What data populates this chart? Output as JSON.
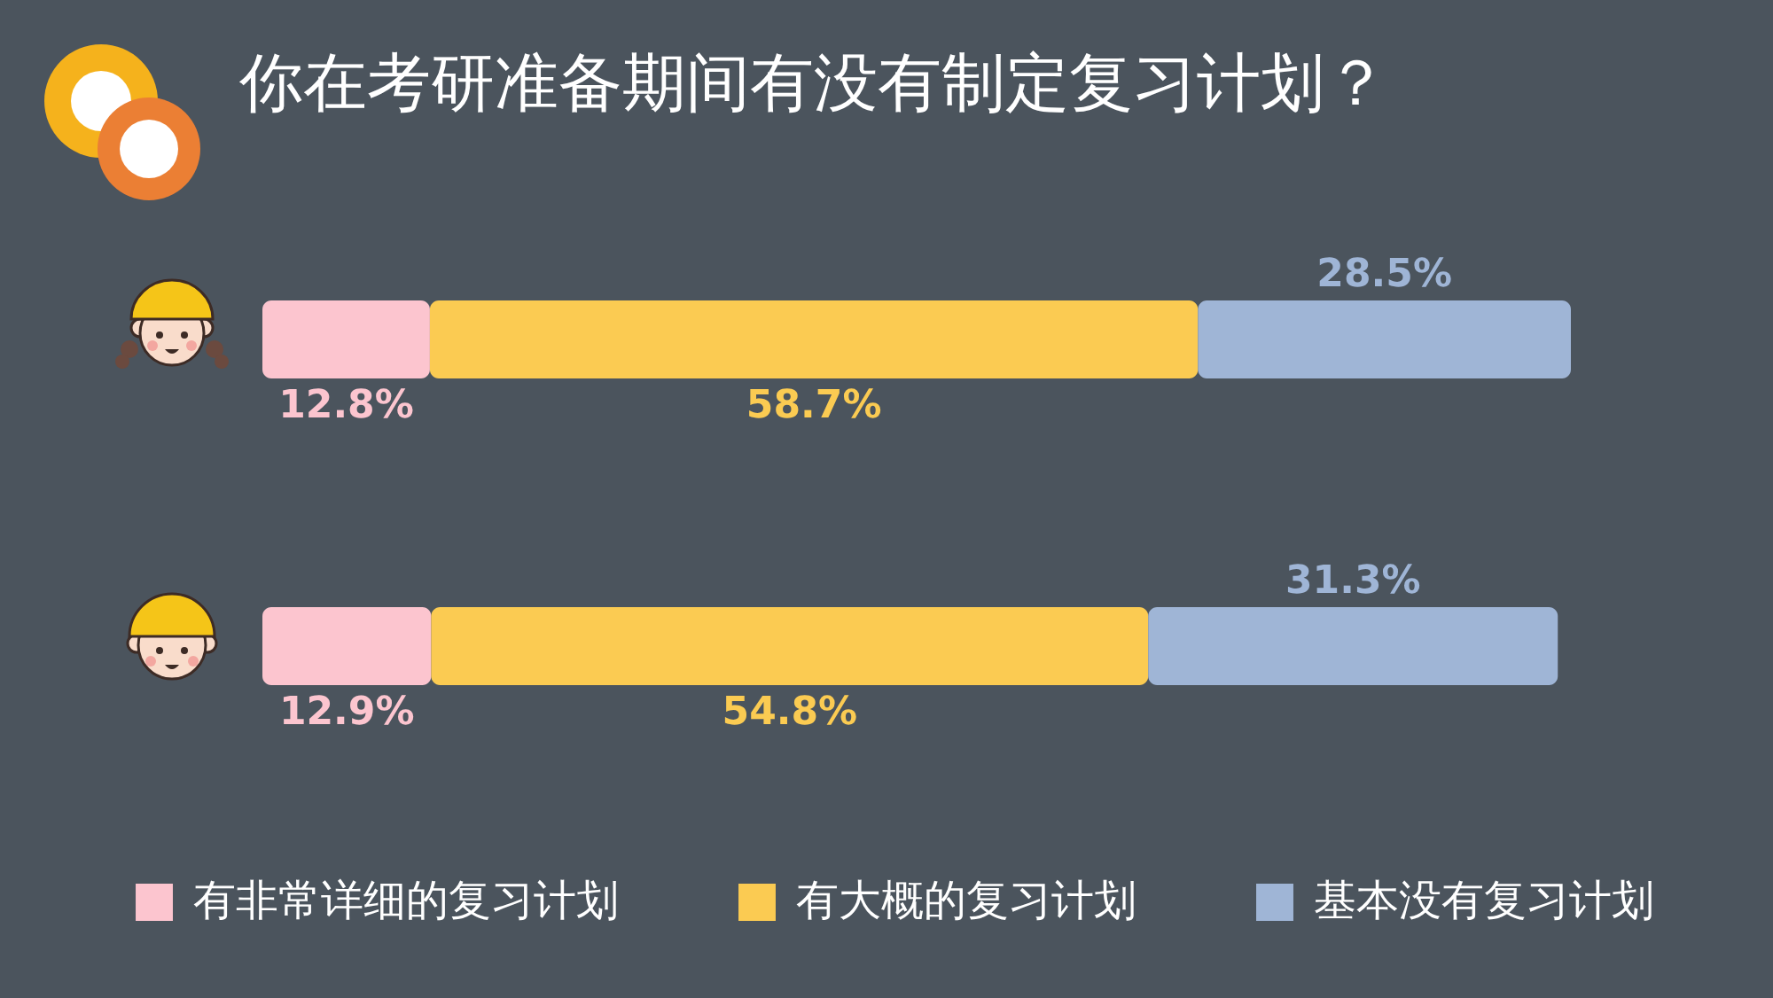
{
  "chart_data": {
    "type": "bar",
    "orientation": "horizontal",
    "stacked": true,
    "title": "你在考研准备期间有没有制定复习计划？",
    "categories": [
      null,
      null
    ],
    "series": [
      {
        "name": "有非常详细的复习计划",
        "color": "#fcc5cf",
        "values": [
          12.8,
          12.9
        ],
        "value_labels": [
          "12.8%",
          "12.9%"
        ]
      },
      {
        "name": "有大概的复习计划",
        "color": "#fbcb52",
        "values": [
          58.7,
          54.8
        ],
        "value_labels": [
          "58.7%",
          "54.8%"
        ]
      },
      {
        "name": "基本没有复习计划",
        "color": "#9fb5d6",
        "values": [
          28.5,
          31.3
        ],
        "value_labels": [
          "28.5%",
          "31.3%"
        ]
      }
    ],
    "legend": "bottom",
    "tick_labels": false
  }
}
